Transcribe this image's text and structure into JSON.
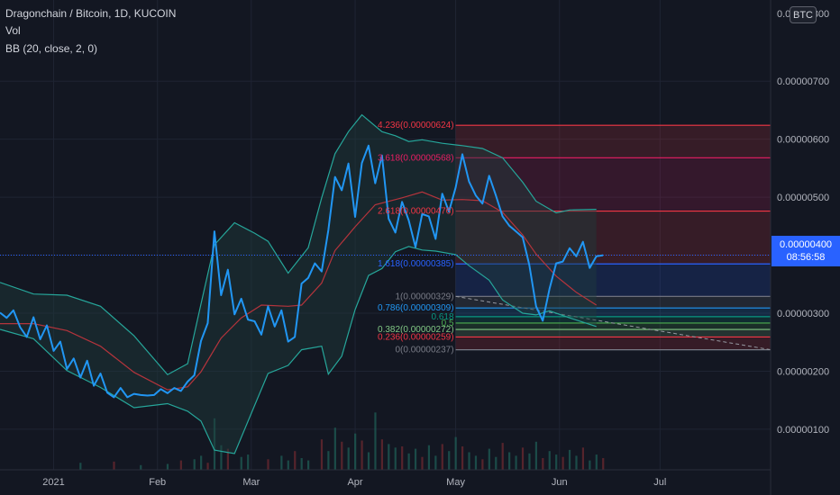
{
  "legend": {
    "symbol": "Dragonchain / Bitcoin, 1D, KUCOIN",
    "vol": "Vol",
    "bb": "BB (20, close, 2, 0)"
  },
  "currency_badge": "BTC",
  "price_tag": {
    "price": "0.00000400",
    "countdown": "08:56:58"
  },
  "colors": {
    "background": "#131722",
    "price_line": "#2196f3",
    "bb_band": "#26a69a",
    "bb_basis": "#b5343c",
    "fill": "#1e3b3b"
  },
  "chart_data": {
    "type": "line",
    "y_axis": {
      "ticks": [
        1e-06,
        2e-06,
        3e-06,
        4e-06,
        5e-06,
        6e-06,
        7e-06
      ],
      "tick_labels": [
        "0.00000100",
        "0.00000200",
        "0.00000300",
        "0.00000400",
        "0.00000500",
        "0.00000600",
        "0.00000700"
      ],
      "top_label": "0.00000800",
      "ylim": [
        3e-07,
        8.4e-06
      ]
    },
    "x_axis": {
      "labels": [
        "2021",
        "Feb",
        "Mar",
        "Apr",
        "May",
        "Jun",
        "Jul"
      ],
      "label_days": [
        16,
        47,
        75,
        106,
        136,
        167,
        197
      ],
      "xlim": [
        0,
        230
      ]
    },
    "price": [
      [
        0,
        3.01
      ],
      [
        2,
        2.92
      ],
      [
        4,
        3.05
      ],
      [
        6,
        2.76
      ],
      [
        8,
        2.59
      ],
      [
        10,
        2.93
      ],
      [
        12,
        2.55
      ],
      [
        14,
        2.79
      ],
      [
        16,
        2.35
      ],
      [
        18,
        2.51
      ],
      [
        20,
        2.04
      ],
      [
        22,
        2.22
      ],
      [
        24,
        1.89
      ],
      [
        26,
        2.18
      ],
      [
        28,
        1.75
      ],
      [
        30,
        1.96
      ],
      [
        32,
        1.63
      ],
      [
        34,
        1.55
      ],
      [
        36,
        1.71
      ],
      [
        38,
        1.55
      ],
      [
        40,
        1.61
      ],
      [
        42,
        1.59
      ],
      [
        44,
        1.58
      ],
      [
        46,
        1.59
      ],
      [
        48,
        1.69
      ],
      [
        50,
        1.62
      ],
      [
        52,
        1.71
      ],
      [
        54,
        1.66
      ],
      [
        56,
        1.82
      ],
      [
        58,
        1.93
      ],
      [
        60,
        2.52
      ],
      [
        62,
        2.83
      ],
      [
        64,
        4.41
      ],
      [
        66,
        3.31
      ],
      [
        68,
        3.75
      ],
      [
        70,
        2.98
      ],
      [
        72,
        3.25
      ],
      [
        74,
        2.89
      ],
      [
        76,
        2.86
      ],
      [
        78,
        2.63
      ],
      [
        80,
        3.12
      ],
      [
        82,
        2.77
      ],
      [
        84,
        3.05
      ],
      [
        86,
        2.51
      ],
      [
        88,
        2.59
      ],
      [
        90,
        3.51
      ],
      [
        92,
        3.61
      ],
      [
        94,
        3.86
      ],
      [
        96,
        3.72
      ],
      [
        98,
        4.43
      ],
      [
        100,
        5.35
      ],
      [
        102,
        5.12
      ],
      [
        104,
        5.58
      ],
      [
        106,
        4.66
      ],
      [
        108,
        5.59
      ],
      [
        110,
        5.89
      ],
      [
        112,
        5.24
      ],
      [
        114,
        5.72
      ],
      [
        116,
        4.63
      ],
      [
        118,
        4.39
      ],
      [
        120,
        4.92
      ],
      [
        122,
        4.6
      ],
      [
        124,
        4.14
      ],
      [
        126,
        4.71
      ],
      [
        128,
        4.67
      ],
      [
        130,
        4.28
      ],
      [
        132,
        5.06
      ],
      [
        134,
        4.75
      ],
      [
        136,
        5.17
      ],
      [
        138,
        5.74
      ],
      [
        140,
        5.27
      ],
      [
        142,
        5.03
      ],
      [
        144,
        4.89
      ],
      [
        146,
        5.37
      ],
      [
        148,
        5.03
      ],
      [
        150,
        4.67
      ],
      [
        152,
        4.51
      ],
      [
        154,
        4.41
      ],
      [
        156,
        4.31
      ],
      [
        158,
        3.83
      ],
      [
        160,
        3.12
      ],
      [
        162,
        2.87
      ],
      [
        164,
        3.42
      ],
      [
        166,
        3.86
      ],
      [
        168,
        3.89
      ],
      [
        170,
        4.12
      ],
      [
        172,
        3.98
      ],
      [
        174,
        4.23
      ],
      [
        176,
        3.78
      ],
      [
        178,
        3.98
      ],
      [
        180,
        4.0
      ]
    ],
    "bollinger": {
      "basis": [
        [
          0,
          2.82
        ],
        [
          10,
          2.82
        ],
        [
          20,
          2.7
        ],
        [
          30,
          2.43
        ],
        [
          40,
          1.98
        ],
        [
          50,
          1.68
        ],
        [
          56,
          1.73
        ],
        [
          60,
          1.99
        ],
        [
          66,
          2.57
        ],
        [
          72,
          2.92
        ],
        [
          78,
          3.14
        ],
        [
          86,
          3.12
        ],
        [
          90,
          3.14
        ],
        [
          96,
          3.52
        ],
        [
          100,
          4.08
        ],
        [
          106,
          4.49
        ],
        [
          112,
          4.87
        ],
        [
          120,
          4.99
        ],
        [
          126,
          5.09
        ],
        [
          132,
          4.95
        ],
        [
          138,
          4.96
        ],
        [
          144,
          4.94
        ],
        [
          150,
          4.74
        ],
        [
          156,
          4.35
        ],
        [
          160,
          4.02
        ],
        [
          166,
          3.64
        ],
        [
          172,
          3.36
        ],
        [
          178,
          3.14
        ]
      ],
      "upper": [
        [
          0,
          3.53
        ],
        [
          10,
          3.33
        ],
        [
          20,
          3.31
        ],
        [
          30,
          3.12
        ],
        [
          40,
          2.61
        ],
        [
          50,
          1.94
        ],
        [
          56,
          2.13
        ],
        [
          60,
          3.16
        ],
        [
          64,
          4.18
        ],
        [
          70,
          4.56
        ],
        [
          76,
          4.38
        ],
        [
          80,
          4.24
        ],
        [
          86,
          3.69
        ],
        [
          92,
          4.13
        ],
        [
          96,
          4.99
        ],
        [
          100,
          5.75
        ],
        [
          104,
          6.13
        ],
        [
          108,
          6.42
        ],
        [
          114,
          6.13
        ],
        [
          118,
          6.06
        ],
        [
          122,
          5.96
        ],
        [
          126,
          5.99
        ],
        [
          132,
          5.93
        ],
        [
          138,
          5.89
        ],
        [
          144,
          5.84
        ],
        [
          150,
          5.68
        ],
        [
          156,
          5.26
        ],
        [
          160,
          4.93
        ],
        [
          166,
          4.73
        ],
        [
          170,
          4.78
        ],
        [
          178,
          4.79
        ]
      ],
      "lower": [
        [
          0,
          2.72
        ],
        [
          10,
          2.56
        ],
        [
          20,
          2.01
        ],
        [
          30,
          1.72
        ],
        [
          40,
          1.37
        ],
        [
          50,
          1.44
        ],
        [
          56,
          1.31
        ],
        [
          60,
          1.14
        ],
        [
          64,
          0.64
        ],
        [
          70,
          0.58
        ],
        [
          76,
          1.41
        ],
        [
          80,
          1.96
        ],
        [
          86,
          2.1
        ],
        [
          90,
          2.37
        ],
        [
          96,
          2.43
        ],
        [
          98,
          1.95
        ],
        [
          102,
          2.26
        ],
        [
          106,
          3.06
        ],
        [
          110,
          3.65
        ],
        [
          114,
          3.77
        ],
        [
          118,
          4.06
        ],
        [
          122,
          4.15
        ],
        [
          126,
          4.09
        ],
        [
          130,
          4.07
        ],
        [
          136,
          4.01
        ],
        [
          140,
          3.82
        ],
        [
          146,
          3.57
        ],
        [
          150,
          3.23
        ],
        [
          156,
          3.0
        ],
        [
          160,
          2.97
        ],
        [
          164,
          3.04
        ],
        [
          170,
          2.92
        ],
        [
          178,
          2.77
        ]
      ]
    },
    "volume": [
      [
        24,
        0.6
      ],
      [
        34,
        0.7
      ],
      [
        42,
        0.4
      ],
      [
        50,
        0.5
      ],
      [
        54,
        0.8
      ],
      [
        58,
        0.9
      ],
      [
        60,
        1.2
      ],
      [
        62,
        0.6
      ],
      [
        64,
        4.4
      ],
      [
        66,
        2.1
      ],
      [
        68,
        1.8
      ],
      [
        72,
        1.1
      ],
      [
        74,
        1.3
      ],
      [
        80,
        0.9
      ],
      [
        84,
        1.2
      ],
      [
        86,
        0.8
      ],
      [
        88,
        1.6
      ],
      [
        90,
        1.0
      ],
      [
        92,
        0.8
      ],
      [
        96,
        2.6
      ],
      [
        98,
        1.6
      ],
      [
        100,
        3.6
      ],
      [
        102,
        2.4
      ],
      [
        104,
        1.9
      ],
      [
        106,
        3.1
      ],
      [
        108,
        2.5
      ],
      [
        110,
        1.5
      ],
      [
        112,
        4.9
      ],
      [
        114,
        2.6
      ],
      [
        116,
        2.2
      ],
      [
        118,
        1.9
      ],
      [
        120,
        2.0
      ],
      [
        122,
        1.4
      ],
      [
        124,
        1.8
      ],
      [
        126,
        1.1
      ],
      [
        128,
        2.1
      ],
      [
        130,
        1.2
      ],
      [
        132,
        2.2
      ],
      [
        134,
        1.6
      ],
      [
        136,
        2.8
      ],
      [
        138,
        2.0
      ],
      [
        140,
        1.5
      ],
      [
        142,
        1.2
      ],
      [
        144,
        0.9
      ],
      [
        146,
        1.8
      ],
      [
        148,
        1.1
      ],
      [
        150,
        2.3
      ],
      [
        152,
        1.5
      ],
      [
        154,
        1.2
      ],
      [
        156,
        1.9
      ],
      [
        158,
        1.4
      ],
      [
        160,
        2.4
      ],
      [
        162,
        1.0
      ],
      [
        164,
        1.6
      ],
      [
        166,
        1.3
      ],
      [
        168,
        1.1
      ],
      [
        170,
        1.7
      ],
      [
        172,
        1.2
      ],
      [
        174,
        1.9
      ],
      [
        176,
        0.8
      ],
      [
        178,
        1.3
      ],
      [
        180,
        1.0
      ]
    ],
    "fibonacci": {
      "start_day": 136,
      "end_day": 230,
      "levels": [
        {
          "ratio": "4.236",
          "price": 6.24,
          "label": "4.236(0.00000624)",
          "color": "#f23645"
        },
        {
          "ratio": "3.618",
          "price": 5.68,
          "label": "3.618(0.00000568)",
          "color": "#e91e63"
        },
        {
          "ratio": "2.618",
          "price": 4.76,
          "label": "2.618(0.00000476)",
          "color": "#f23645"
        },
        {
          "ratio": "1.618",
          "price": 3.85,
          "label": "1.618(0.00000385)",
          "color": "#2962ff"
        },
        {
          "ratio": "1",
          "price": 3.29,
          "label": "1(0.00000329)",
          "color": "#787b86"
        },
        {
          "ratio": "0.786",
          "price": 3.09,
          "label": "0.786(0.00000309)",
          "color": "#2196f3"
        },
        {
          "ratio": "0.618",
          "price": 2.94,
          "label": "0.618",
          "color": "#089981"
        },
        {
          "ratio": "0.5",
          "price": 2.83,
          "label": "0.5",
          "color": "#4caf50"
        },
        {
          "ratio": "0.382",
          "price": 2.72,
          "label": "0.382(0.00000272)",
          "color": "#81c784"
        },
        {
          "ratio": "0.236",
          "price": 2.59,
          "label": "0.236(0.00000259)",
          "color": "#f23645"
        },
        {
          "ratio": "0",
          "price": 2.37,
          "label": "0(0.00000237)",
          "color": "#787b86"
        }
      ],
      "trend_line": [
        [
          136,
          3.29
        ],
        [
          230,
          2.37
        ]
      ]
    },
    "last_price": 4.0
  }
}
